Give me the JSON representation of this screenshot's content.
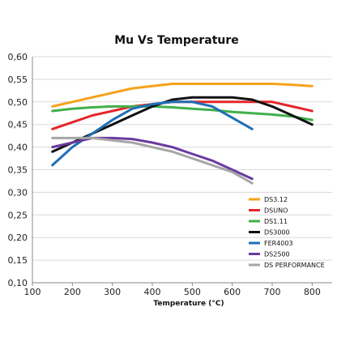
{
  "chart_data": {
    "type": "line",
    "title": "Mu Vs Temperature",
    "xlabel": "Temperature (°C)",
    "ylabel": "",
    "xlim": [
      100,
      850
    ],
    "ylim": [
      0.1,
      0.6
    ],
    "xticks": [
      "100",
      "200",
      "300",
      "400",
      "500",
      "600",
      "700",
      "800"
    ],
    "xtick_values": [
      100,
      200,
      300,
      400,
      500,
      600,
      700,
      800
    ],
    "yticks": [
      "0,10",
      "0,15",
      "0,20",
      "0,25",
      "0,30",
      "0,35",
      "0,40",
      "0,45",
      "0,50",
      "0,55",
      "0,60"
    ],
    "ytick_values": [
      0.1,
      0.15,
      0.2,
      0.25,
      0.3,
      0.35,
      0.4,
      0.45,
      0.5,
      0.55,
      0.6
    ],
    "grid": "horizontal",
    "legend_position": "bottom-right",
    "series": [
      {
        "name": "DS3.12",
        "color": "#f5a21b",
        "x": [
          150,
          200,
          250,
          300,
          350,
          400,
          450,
          500,
          550,
          600,
          650,
          700,
          750,
          800
        ],
        "y": [
          0.49,
          0.5,
          0.51,
          0.52,
          0.53,
          0.535,
          0.54,
          0.54,
          0.54,
          0.54,
          0.54,
          0.54,
          0.538,
          0.535
        ]
      },
      {
        "name": "DSUNO",
        "color": "#e3262b",
        "x": [
          150,
          200,
          250,
          300,
          350,
          400,
          450,
          500,
          550,
          600,
          650,
          700,
          750,
          800
        ],
        "y": [
          0.44,
          0.455,
          0.47,
          0.48,
          0.49,
          0.495,
          0.5,
          0.5,
          0.5,
          0.5,
          0.5,
          0.5,
          0.49,
          0.48
        ]
      },
      {
        "name": "DS1.11",
        "color": "#3fb04a",
        "x": [
          150,
          200,
          250,
          300,
          350,
          400,
          450,
          500,
          550,
          600,
          650,
          700,
          750,
          800
        ],
        "y": [
          0.48,
          0.485,
          0.488,
          0.49,
          0.49,
          0.49,
          0.488,
          0.485,
          0.482,
          0.478,
          0.475,
          0.472,
          0.468,
          0.46
        ]
      },
      {
        "name": "DS3000",
        "color": "#111111",
        "x": [
          150,
          200,
          250,
          300,
          350,
          400,
          450,
          500,
          550,
          600,
          650,
          700,
          750,
          800
        ],
        "y": [
          0.39,
          0.41,
          0.43,
          0.45,
          0.47,
          0.49,
          0.505,
          0.51,
          0.51,
          0.51,
          0.505,
          0.49,
          0.47,
          0.45
        ]
      },
      {
        "name": "FER4003",
        "color": "#1f6fb5",
        "x": [
          150,
          200,
          250,
          300,
          350,
          400,
          450,
          500,
          550,
          600,
          650
        ],
        "y": [
          0.36,
          0.4,
          0.43,
          0.46,
          0.485,
          0.495,
          0.5,
          0.5,
          0.49,
          0.465,
          0.44
        ]
      },
      {
        "name": "DS2500",
        "color": "#6a3aa0",
        "x": [
          150,
          200,
          250,
          300,
          350,
          400,
          450,
          500,
          550,
          600,
          650
        ],
        "y": [
          0.4,
          0.41,
          0.42,
          0.42,
          0.418,
          0.41,
          0.4,
          0.385,
          0.37,
          0.35,
          0.33
        ]
      },
      {
        "name": "DS PERFORMANCE",
        "color": "#a6a6a6",
        "x": [
          150,
          200,
          250,
          300,
          350,
          400,
          450,
          500,
          550,
          600,
          650
        ],
        "y": [
          0.42,
          0.42,
          0.42,
          0.415,
          0.41,
          0.4,
          0.39,
          0.375,
          0.36,
          0.345,
          0.32
        ]
      }
    ]
  }
}
